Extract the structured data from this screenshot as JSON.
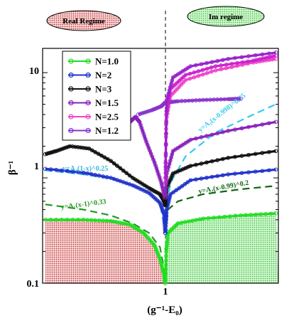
{
  "chart_data": {
    "type": "line",
    "xlabel": "(g⁻¹-E₀)",
    "ylabel": "β⁻¹",
    "ylim": [
      0.1,
      17
    ],
    "yscale": "log",
    "xlim": [
      0.55,
      1.45
    ],
    "ytick_labels": [
      "0.1",
      "1",
      "10"
    ],
    "yticks": [
      0.1,
      1,
      10
    ],
    "xtick_labels": [
      "1"
    ],
    "xticks": [
      1.0
    ],
    "vertical_line_x": 1.0,
    "regime_labels": [
      {
        "text": "Real Regime",
        "side": "left",
        "color": "#ee9999"
      },
      {
        "text": "Im regime",
        "side": "right",
        "color": "#44aa44"
      }
    ],
    "legend": {
      "placement": "top-left"
    },
    "series": [
      {
        "name": "N=1.0",
        "color": "#22dd22",
        "marker": "open-circle",
        "left": [
          [
            0.56,
            0.4
          ],
          [
            0.7,
            0.4
          ],
          [
            0.8,
            0.39
          ],
          [
            0.87,
            0.36
          ],
          [
            0.92,
            0.3
          ],
          [
            0.96,
            0.23
          ],
          [
            0.98,
            0.17
          ],
          [
            0.995,
            0.12
          ],
          [
            0.999,
            0.1
          ]
        ],
        "right": [
          [
            1.0,
            0.1
          ],
          [
            1.003,
            0.2
          ],
          [
            1.01,
            0.3
          ],
          [
            1.05,
            0.37
          ],
          [
            1.15,
            0.41
          ],
          [
            1.3,
            0.44
          ],
          [
            1.44,
            0.46
          ]
        ]
      },
      {
        "name": "N=2",
        "color": "#2233cc",
        "marker": "open-circle",
        "left": [
          [
            0.56,
            1.22
          ],
          [
            0.7,
            1.12
          ],
          [
            0.8,
            1.0
          ],
          [
            0.88,
            0.85
          ],
          [
            0.94,
            0.72
          ],
          [
            0.98,
            0.58
          ],
          [
            0.995,
            0.45
          ],
          [
            0.999,
            0.3
          ]
        ],
        "right": [
          [
            1.0,
            0.3
          ],
          [
            1.005,
            0.5
          ],
          [
            1.02,
            0.7
          ],
          [
            1.1,
            0.95
          ],
          [
            1.25,
            1.08
          ],
          [
            1.44,
            1.2
          ]
        ]
      },
      {
        "name": "N=3",
        "color": "#111111",
        "marker": "open-circle",
        "left": [
          [
            0.56,
            1.68
          ],
          [
            0.6,
            1.8
          ],
          [
            0.65,
            2.0
          ],
          [
            0.72,
            1.9
          ],
          [
            0.8,
            1.45
          ],
          [
            0.88,
            1.0
          ],
          [
            0.94,
            0.8
          ],
          [
            0.98,
            0.7
          ],
          [
            0.995,
            0.6
          ],
          [
            0.999,
            0.55
          ]
        ],
        "right": [
          [
            1.0,
            0.55
          ],
          [
            1.005,
            0.8
          ],
          [
            1.03,
            1.1
          ],
          [
            1.1,
            1.3
          ],
          [
            1.25,
            1.55
          ],
          [
            1.44,
            1.8
          ]
        ]
      },
      {
        "name": "N=1.5",
        "color": "#8822bb",
        "marker": "open-circle",
        "left": [
          [
            0.85,
            3.1
          ],
          [
            0.87,
            3.4
          ],
          [
            0.89,
            3.8
          ],
          [
            0.905,
            3.4
          ],
          [
            0.93,
            2.2
          ],
          [
            0.96,
            1.4
          ],
          [
            0.985,
            0.9
          ],
          [
            0.998,
            0.65
          ]
        ],
        "right": [
          [
            1.0,
            0.65
          ],
          [
            1.005,
            1.1
          ],
          [
            1.03,
            1.8
          ],
          [
            1.1,
            2.3
          ],
          [
            1.25,
            2.8
          ],
          [
            1.44,
            3.4
          ]
        ]
      },
      {
        "name": "N=2.5",
        "color": "#ee44cc",
        "marker": "open-circle",
        "left": [],
        "right": [
          [
            1.0,
            1.0
          ],
          [
            1.003,
            3.5
          ],
          [
            1.02,
            6.0
          ],
          [
            1.08,
            8.5
          ],
          [
            1.2,
            10.5
          ],
          [
            1.35,
            12.5
          ],
          [
            1.44,
            13.5
          ]
        ]
      },
      {
        "name": "N=1.2",
        "color": "#8833cc",
        "marker": "open-circle",
        "left": [
          [
            0.9,
            4.0
          ],
          [
            0.95,
            4.4
          ],
          [
            0.985,
            4.8
          ],
          [
            0.999,
            5.2
          ]
        ],
        "right": [
          [
            1.0,
            5.2
          ],
          [
            1.05,
            5.35
          ],
          [
            1.15,
            5.5
          ],
          [
            1.25,
            5.6
          ],
          [
            1.3,
            5.65
          ]
        ]
      }
    ],
    "extra_curves": [
      {
        "color": "#cc22cc",
        "right": [
          [
            1.0,
            0.9
          ],
          [
            1.003,
            4.0
          ],
          [
            1.02,
            7.0
          ],
          [
            1.08,
            9.5
          ],
          [
            1.2,
            11.5
          ],
          [
            1.35,
            13.0
          ],
          [
            1.44,
            14.5
          ]
        ]
      },
      {
        "color": "#9922cc",
        "right": [
          [
            1.0,
            1.0
          ],
          [
            1.005,
            5.5
          ],
          [
            1.03,
            9.0
          ],
          [
            1.1,
            11.5
          ],
          [
            1.25,
            13.5
          ],
          [
            1.44,
            15.5
          ]
        ]
      }
    ],
    "fits": [
      {
        "label": "y=A₁(1-x)^0.25",
        "color": "#33bbdd",
        "side": "left",
        "points": [
          [
            0.56,
            1.18
          ],
          [
            0.7,
            1.08
          ],
          [
            0.8,
            0.98
          ],
          [
            0.88,
            0.86
          ],
          [
            0.94,
            0.72
          ],
          [
            0.98,
            0.58
          ],
          [
            0.999,
            0.3
          ]
        ]
      },
      {
        "label": "y=A₁(x-0.998)^0.75",
        "color": "#33ccee",
        "side": "right",
        "points": [
          [
            1.0,
            0.1
          ],
          [
            1.005,
            0.5
          ],
          [
            1.02,
            0.9
          ],
          [
            1.08,
            1.6
          ],
          [
            1.2,
            2.7
          ],
          [
            1.35,
            4.0
          ],
          [
            1.44,
            5.0
          ]
        ]
      },
      {
        "label": "y=A₁(x-1)^0.33",
        "color": "#229922",
        "side": "left",
        "points": [
          [
            0.56,
            0.56
          ],
          [
            0.7,
            0.5
          ],
          [
            0.8,
            0.44
          ],
          [
            0.88,
            0.37
          ],
          [
            0.94,
            0.3
          ],
          [
            0.98,
            0.22
          ],
          [
            0.999,
            0.12
          ]
        ]
      },
      {
        "label": "y=A₂(x-0.99)^0.2",
        "color": "#116611",
        "side": "right",
        "points": [
          [
            1.0,
            0.3
          ],
          [
            1.01,
            0.5
          ],
          [
            1.05,
            0.6
          ],
          [
            1.15,
            0.7
          ],
          [
            1.3,
            0.78
          ],
          [
            1.44,
            0.84
          ]
        ]
      }
    ]
  }
}
